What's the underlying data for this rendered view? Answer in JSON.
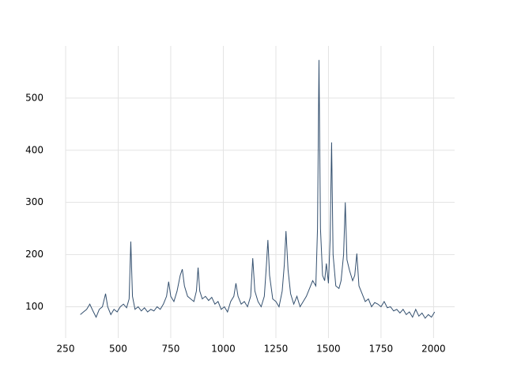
{
  "chart_data": {
    "type": "line",
    "x": [
      320,
      335,
      350,
      365,
      380,
      395,
      410,
      425,
      440,
      450,
      465,
      480,
      495,
      510,
      525,
      540,
      552,
      560,
      568,
      580,
      595,
      610,
      625,
      640,
      655,
      670,
      685,
      700,
      715,
      730,
      740,
      750,
      765,
      780,
      795,
      805,
      815,
      830,
      845,
      860,
      872,
      880,
      888,
      900,
      915,
      930,
      945,
      960,
      975,
      990,
      1005,
      1020,
      1035,
      1050,
      1060,
      1070,
      1085,
      1100,
      1115,
      1130,
      1140,
      1150,
      1165,
      1180,
      1195,
      1205,
      1212,
      1220,
      1235,
      1250,
      1265,
      1280,
      1290,
      1298,
      1308,
      1320,
      1335,
      1350,
      1365,
      1380,
      1395,
      1410,
      1425,
      1440,
      1448,
      1455,
      1462,
      1472,
      1482,
      1490,
      1500,
      1508,
      1515,
      1522,
      1535,
      1550,
      1560,
      1572,
      1580,
      1588,
      1600,
      1615,
      1625,
      1635,
      1645,
      1660,
      1675,
      1690,
      1705,
      1720,
      1735,
      1750,
      1765,
      1780,
      1795,
      1810,
      1825,
      1840,
      1855,
      1870,
      1885,
      1900,
      1915,
      1930,
      1945,
      1960,
      1975,
      1990,
      2005
    ],
    "series": [
      {
        "color": "#34506f",
        "values": [
          85,
          90,
          95,
          105,
          92,
          80,
          95,
          100,
          125,
          100,
          85,
          95,
          90,
          100,
          105,
          98,
          115,
          225,
          120,
          95,
          100,
          92,
          98,
          90,
          95,
          92,
          100,
          95,
          105,
          120,
          148,
          120,
          110,
          130,
          160,
          172,
          140,
          120,
          115,
          110,
          130,
          175,
          130,
          115,
          120,
          112,
          118,
          105,
          110,
          95,
          100,
          90,
          110,
          120,
          145,
          120,
          105,
          110,
          100,
          120,
          193,
          130,
          110,
          100,
          120,
          180,
          228,
          160,
          115,
          110,
          100,
          130,
          180,
          245,
          170,
          125,
          105,
          120,
          100,
          110,
          120,
          135,
          150,
          140,
          250,
          573,
          250,
          160,
          150,
          183,
          145,
          230,
          415,
          200,
          140,
          135,
          150,
          200,
          300,
          190,
          170,
          150,
          160,
          202,
          140,
          125,
          110,
          115,
          100,
          108,
          105,
          100,
          110,
          98,
          100,
          92,
          95,
          88,
          95,
          85,
          90,
          80,
          95,
          82,
          88,
          78,
          85,
          80,
          90
        ]
      }
    ],
    "xlim": [
      250,
      2100
    ],
    "xticks": [
      250,
      500,
      750,
      1000,
      1250,
      1500,
      1750,
      2000
    ],
    "ylim": [
      40,
      600
    ],
    "yticks": [
      100,
      200,
      300,
      400,
      500
    ],
    "grid": true
  }
}
